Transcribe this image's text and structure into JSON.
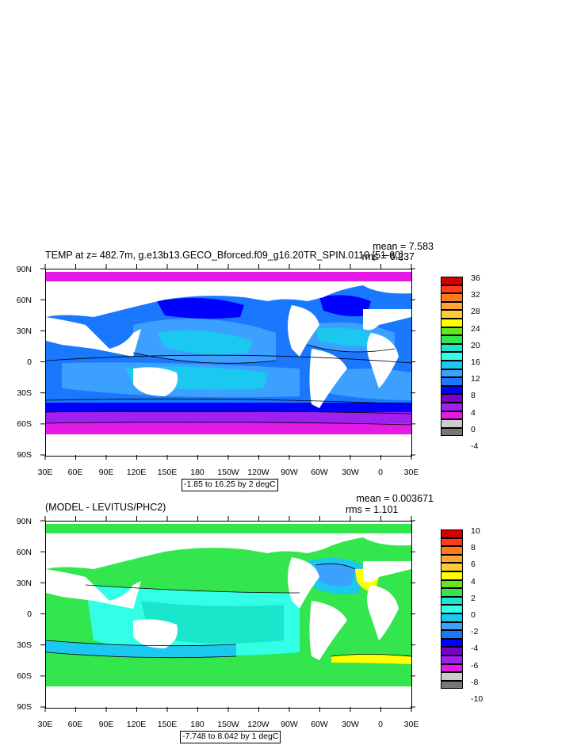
{
  "panels": [
    {
      "title": "TEMP at z= 482.7m, g.e13b13.GECO_Bforced.f09_g16.20TR_SPIN.0110 [51-60]",
      "mean": "mean = 7.583",
      "rms": "rms = 6.237",
      "contour_note": "-1.85 to 16.25 by 2 degC",
      "colorbar_labels": [
        "36",
        "32",
        "28",
        "24",
        "20",
        "16",
        "12",
        "8",
        "4",
        "0",
        "-4"
      ],
      "colorbar_colors": [
        "#d40000",
        "#ff3b1a",
        "#ff7a1a",
        "#ffa533",
        "#ffcc33",
        "#ffff00",
        "#66e61a",
        "#33e64d",
        "#1ae6cc",
        "#33ffe6",
        "#1ac8f0",
        "#3ca0ff",
        "#1a78ff",
        "#0000ff",
        "#7a00cc",
        "#a020f0",
        "#e61ae6",
        "#cccccc",
        "#777777"
      ]
    },
    {
      "title": "(MODEL - LEVITUS/PHC2)",
      "mean": "mean = 0.003671",
      "rms": "rms = 1.101",
      "contour_note": "-7.748 to 8.042 by 1 degC",
      "colorbar_labels": [
        "10",
        "8",
        "6",
        "4",
        "2",
        "0",
        "-2",
        "-4",
        "-6",
        "-8",
        "-10"
      ],
      "colorbar_colors": [
        "#d40000",
        "#ff3b1a",
        "#ff7a1a",
        "#ffa533",
        "#ffcc33",
        "#ffff00",
        "#66e61a",
        "#33e64d",
        "#1ae6cc",
        "#33ffe6",
        "#1ac8f0",
        "#3ca0ff",
        "#1a78ff",
        "#0000ff",
        "#7a00cc",
        "#a020f0",
        "#e61ae6",
        "#cccccc",
        "#777777"
      ]
    }
  ],
  "lat_labels": [
    "90N",
    "60N",
    "30N",
    "0",
    "30S",
    "60S",
    "90S"
  ],
  "lon_labels": [
    "30E",
    "60E",
    "90E",
    "120E",
    "150E",
    "180",
    "150W",
    "120W",
    "90W",
    "60W",
    "30W",
    "0",
    "30E"
  ]
}
